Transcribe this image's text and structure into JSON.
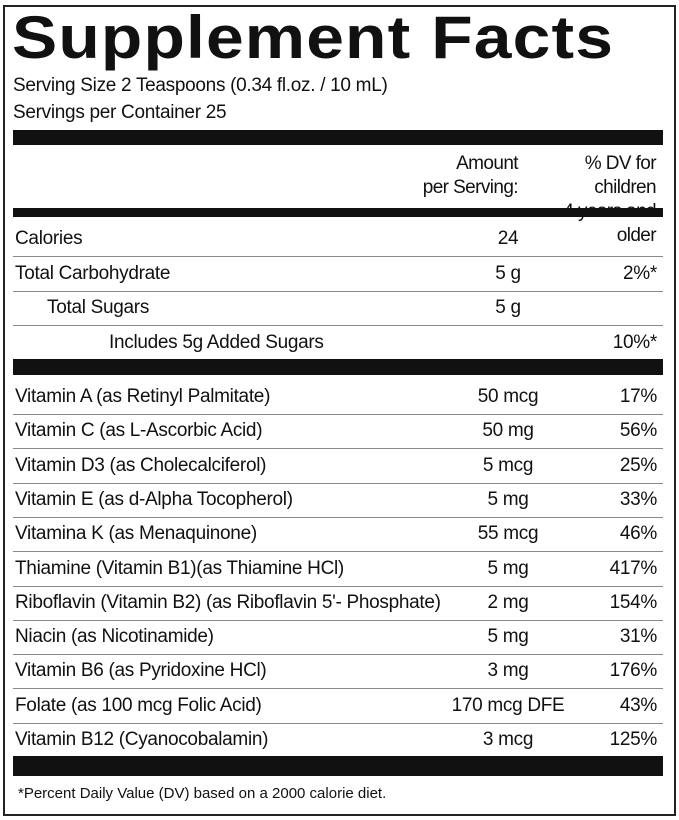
{
  "title": "Supplement Facts",
  "serving_size": "Serving Size 2 Teaspoons (0.34 fl.oz. / 10 mL)",
  "servings_per_container": "Servings per Container 25",
  "header": {
    "amount_line1": "Amount",
    "amount_line2": "per Serving:",
    "dv_line1": "% DV for children",
    "dv_line2": "4 years and older"
  },
  "section1": [
    {
      "name": "Calories",
      "amount": "24",
      "dv": ""
    },
    {
      "name": "Total Carbohydrate",
      "amount": "5 g",
      "dv": "2%*"
    },
    {
      "name": "Total Sugars",
      "amount": "5 g",
      "dv": ""
    },
    {
      "name": "Includes 5g Added Sugars",
      "amount": "",
      "dv": "10%*"
    }
  ],
  "section2": [
    {
      "name": "Vitamin A (as Retinyl Palmitate)",
      "amount": "50 mcg",
      "dv": "17%"
    },
    {
      "name": "Vitamin C (as L-Ascorbic Acid)",
      "amount": "50 mg",
      "dv": "56%"
    },
    {
      "name": "Vitamin D3 (as Cholecalciferol)",
      "amount": "5 mcg",
      "dv": "25%"
    },
    {
      "name": "Vitamin E (as d-Alpha Tocopherol)",
      "amount": "5 mg",
      "dv": "33%"
    },
    {
      "name": "Vitamina K (as Menaquinone)",
      "amount": "55 mcg",
      "dv": "46%"
    },
    {
      "name": "Thiamine (Vitamin B1)(as Thiamine HCl)",
      "amount": "5 mg",
      "dv": "417%"
    },
    {
      "name": "Riboflavin (Vitamin B2) (as Riboflavin 5'- Phosphate)",
      "amount": "2 mg",
      "dv": "154%"
    },
    {
      "name": "Niacin (as Nicotinamide)",
      "amount": "5 mg",
      "dv": "31%"
    },
    {
      "name": "Vitamin B6 (as Pyridoxine HCl)",
      "amount": "3 mg",
      "dv": "176%"
    },
    {
      "name": "Folate (as 100 mcg Folic Acid)",
      "amount": "170 mcg DFE",
      "dv": "43%"
    },
    {
      "name": "Vitamin B12 (Cyanocobalamin)",
      "amount": "3 mcg",
      "dv": "125%"
    }
  ],
  "footnote": "*Percent Daily Value (DV) based on a 2000 calorie diet."
}
